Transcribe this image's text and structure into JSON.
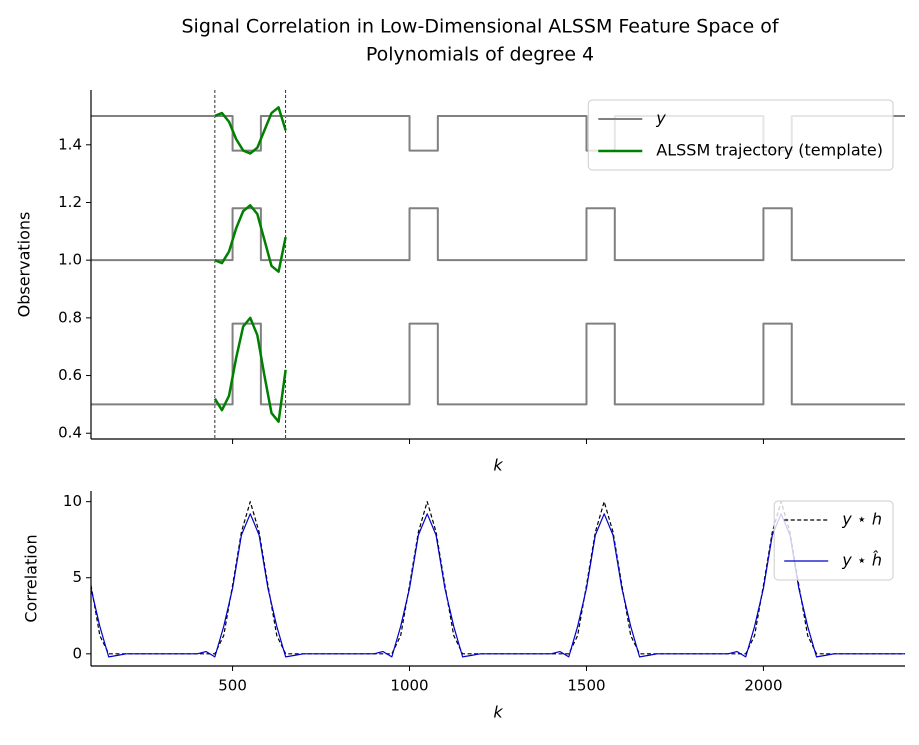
{
  "chart_data": [
    {
      "type": "line",
      "title": [
        "Signal Correlation in Low-Dimensional ALSSM Feature Space of",
        "Polynomials of degree 4"
      ],
      "xlabel": "k",
      "ylabel": "Observations",
      "xlim": [
        100,
        2400
      ],
      "xticks": [
        500,
        1000,
        1500,
        2000
      ],
      "xtick_labels": false,
      "ylim": [
        0.38,
        1.59
      ],
      "yticks": [
        0.4,
        0.6,
        0.8,
        {
          "value": 1,
          "label": "1.0"
        },
        1.2,
        1.4
      ],
      "vlines": [
        450,
        650
      ],
      "legend": "upper right",
      "series": [
        {
          "name": "y",
          "italic": true,
          "color": "#808080",
          "width": 2,
          "lines": [
            {
              "x": [
                100,
                500,
                500,
                580,
                580,
                1000,
                1000,
                1080,
                1080,
                1500,
                1500,
                1580,
                1580,
                2000,
                2000,
                2080,
                2080,
                2400
              ],
              "values": [
                1.5,
                1.5,
                1.38,
                1.38,
                1.5,
                1.5,
                1.38,
                1.38,
                1.5,
                1.5,
                1.38,
                1.38,
                1.5,
                1.5,
                1.38,
                1.38,
                1.5,
                1.5
              ]
            },
            {
              "x": [
                100,
                500,
                500,
                580,
                580,
                1000,
                1000,
                1080,
                1080,
                1500,
                1500,
                1580,
                1580,
                2000,
                2000,
                2080,
                2080,
                2400
              ],
              "values": [
                1,
                1,
                1.18,
                1.18,
                1,
                1,
                1.18,
                1.18,
                1,
                1,
                1.18,
                1.18,
                1,
                1,
                1.18,
                1.18,
                1,
                1
              ]
            },
            {
              "x": [
                100,
                500,
                500,
                580,
                580,
                1000,
                1000,
                1080,
                1080,
                1500,
                1500,
                1580,
                1580,
                2000,
                2000,
                2080,
                2080,
                2400
              ],
              "values": [
                0.5,
                0.5,
                0.78,
                0.78,
                0.5,
                0.5,
                0.78,
                0.78,
                0.5,
                0.5,
                0.78,
                0.78,
                0.5,
                0.5,
                0.78,
                0.78,
                0.5,
                0.5
              ]
            }
          ]
        },
        {
          "name": "ALSSM trajectory (template)",
          "italic": false,
          "color": "#008000",
          "width": 2.5,
          "lines": [
            {
              "x": [
                450,
                470,
                490,
                510,
                530,
                550,
                570,
                590,
                610,
                630,
                650
              ],
              "values": [
                1.5,
                1.51,
                1.48,
                1.42,
                1.38,
                1.37,
                1.39,
                1.45,
                1.51,
                1.53,
                1.45
              ]
            },
            {
              "x": [
                450,
                470,
                490,
                510,
                530,
                550,
                570,
                590,
                610,
                630,
                650
              ],
              "values": [
                1,
                0.99,
                1.03,
                1.11,
                1.17,
                1.19,
                1.16,
                1.07,
                0.98,
                0.96,
                1.08
              ]
            },
            {
              "x": [
                450,
                470,
                490,
                510,
                530,
                550,
                570,
                590,
                610,
                630,
                650
              ],
              "values": [
                0.52,
                0.48,
                0.53,
                0.66,
                0.77,
                0.8,
                0.74,
                0.6,
                0.47,
                0.44,
                0.62
              ]
            }
          ]
        }
      ]
    },
    {
      "type": "line",
      "xlabel": "k",
      "ylabel": "Correlation",
      "xlim": [
        100,
        2400
      ],
      "xticks": [
        500,
        1000,
        1500,
        2000
      ],
      "xtick_labels": true,
      "ylim": [
        -0.8,
        10.7
      ],
      "yticks": [
        0,
        5,
        10
      ],
      "legend": "upper right",
      "x": [
        100,
        125,
        150,
        175,
        200,
        225,
        250,
        275,
        300,
        325,
        350,
        375,
        400,
        425,
        450,
        475,
        500,
        525,
        550,
        575,
        600,
        625,
        650,
        675,
        700,
        725,
        750,
        775,
        800,
        825,
        850,
        875,
        900,
        925,
        950,
        975,
        1000,
        1025,
        1050,
        1075,
        1100,
        1125,
        1150,
        1175,
        1200,
        1225,
        1250,
        1275,
        1300,
        1325,
        1350,
        1375,
        1400,
        1425,
        1450,
        1475,
        1500,
        1525,
        1550,
        1575,
        1600,
        1625,
        1650,
        1675,
        1700,
        1725,
        1750,
        1775,
        1800,
        1825,
        1850,
        1875,
        1900,
        1925,
        1950,
        1975,
        2000,
        2025,
        2050,
        2075,
        2100,
        2125,
        2150,
        2175,
        2200,
        2225,
        2250,
        2275,
        2300,
        2325,
        2350,
        2375,
        2400
      ],
      "series": [
        {
          "name": "y ⋆ h",
          "italic": true,
          "color": "#000000",
          "width": 1.2,
          "linestyle": "dashed",
          "values": [
            4.5,
            1.2,
            0,
            0,
            0,
            0,
            0,
            0,
            0,
            0,
            0,
            0,
            0,
            0,
            0,
            1.2,
            4.5,
            8,
            10,
            8,
            4.5,
            1.2,
            0,
            0,
            0,
            0,
            0,
            0,
            0,
            0,
            0,
            0,
            0,
            0,
            0,
            1.2,
            4.5,
            8,
            10,
            8,
            4.5,
            1.2,
            0,
            0,
            0,
            0,
            0,
            0,
            0,
            0,
            0,
            0,
            0,
            0,
            0,
            1.2,
            4.5,
            8,
            10,
            8,
            4.5,
            1.2,
            0,
            0,
            0,
            0,
            0,
            0,
            0,
            0,
            0,
            0,
            0,
            0,
            0,
            1.2,
            4.5,
            8,
            10,
            8,
            4.5,
            1.2,
            0,
            0,
            0,
            0,
            0,
            0,
            0,
            0,
            0,
            0,
            0
          ]
        },
        {
          "name": "y ⋆ ĥ",
          "italic": true,
          "color": "#0000cc",
          "width": 1.2,
          "linestyle": "solid",
          "values": [
            4.3,
            1.8,
            -0.2,
            -0.1,
            0,
            0,
            0,
            0,
            0,
            0,
            0,
            0,
            0,
            0.15,
            -0.2,
            1.8,
            4.3,
            7.8,
            9.2,
            7.8,
            4.3,
            1.8,
            -0.2,
            -0.1,
            0,
            0,
            0,
            0,
            0,
            0,
            0,
            0,
            0,
            0.15,
            -0.2,
            1.8,
            4.3,
            7.8,
            9.2,
            7.8,
            4.3,
            1.8,
            -0.2,
            -0.1,
            0,
            0,
            0,
            0,
            0,
            0,
            0,
            0,
            0,
            0.15,
            -0.2,
            1.8,
            4.3,
            7.8,
            9.2,
            7.8,
            4.3,
            1.8,
            -0.2,
            -0.1,
            0,
            0,
            0,
            0,
            0,
            0,
            0,
            0,
            0,
            0.15,
            -0.2,
            1.8,
            4.3,
            7.8,
            9.2,
            7.8,
            4.3,
            1.8,
            -0.2,
            -0.1,
            0,
            0,
            0,
            0,
            0,
            0,
            0,
            0,
            0
          ]
        }
      ]
    }
  ]
}
